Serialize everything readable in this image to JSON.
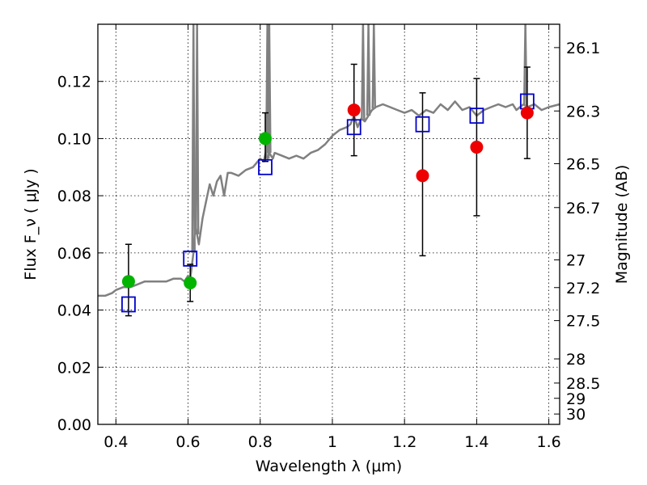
{
  "chart_data": {
    "type": "scatter",
    "xlabel": "Wavelength  λ (μm)",
    "ylabel": "Flux  F_ν  ( μJy )",
    "y2label": "Magnitude (AB)",
    "xlim": [
      0.35,
      1.63
    ],
    "ylim": [
      0.0,
      0.14
    ],
    "grid": true,
    "x_ticks": [
      {
        "value": 0.4,
        "label": "0.4"
      },
      {
        "value": 0.6,
        "label": "0.6"
      },
      {
        "value": 0.8,
        "label": "0.8"
      },
      {
        "value": 1.0,
        "label": "1"
      },
      {
        "value": 1.2,
        "label": "1.2"
      },
      {
        "value": 1.4,
        "label": "1.4"
      },
      {
        "value": 1.6,
        "label": "1.6"
      }
    ],
    "y_ticks": [
      {
        "value": 0.0,
        "label": "0.00"
      },
      {
        "value": 0.02,
        "label": "0.02"
      },
      {
        "value": 0.04,
        "label": "0.04"
      },
      {
        "value": 0.06,
        "label": "0.06"
      },
      {
        "value": 0.08,
        "label": "0.08"
      },
      {
        "value": 0.1,
        "label": "0.10"
      },
      {
        "value": 0.12,
        "label": "0.12"
      }
    ],
    "y2_ticks": [
      {
        "mag": 26.1,
        "label": "26.1"
      },
      {
        "mag": 26.3,
        "label": "26.3"
      },
      {
        "mag": 26.5,
        "label": "26.5"
      },
      {
        "mag": 26.7,
        "label": "26.7"
      },
      {
        "mag": 27.0,
        "label": "27"
      },
      {
        "mag": 27.2,
        "label": "27.2"
      },
      {
        "mag": 27.5,
        "label": "27.5"
      },
      {
        "mag": 28.0,
        "label": "28"
      },
      {
        "mag": 28.5,
        "label": "28.5"
      },
      {
        "mag": 29.0,
        "label": "29"
      },
      {
        "mag": 30.0,
        "label": "30"
      }
    ],
    "colors": {
      "model": "#808080",
      "model_points": "#0000cc",
      "detections": "#00b400",
      "nir_points": "#ee0000",
      "grid": "#000000"
    },
    "series": [
      {
        "kind": "model_spectrum",
        "x": [
          0.35,
          0.37,
          0.39,
          0.4,
          0.42,
          0.44,
          0.46,
          0.48,
          0.5,
          0.52,
          0.54,
          0.56,
          0.58,
          0.59,
          0.6,
          0.605,
          0.61,
          0.615,
          0.62,
          0.63,
          0.64,
          0.65,
          0.66,
          0.67,
          0.68,
          0.69,
          0.7,
          0.71,
          0.72,
          0.74,
          0.76,
          0.78,
          0.8,
          0.81,
          0.815,
          0.82,
          0.825,
          0.83,
          0.835,
          0.84,
          0.86,
          0.88,
          0.9,
          0.92,
          0.94,
          0.96,
          0.98,
          1.0,
          1.02,
          1.04,
          1.05,
          1.06,
          1.07,
          1.08,
          1.09,
          1.1,
          1.11,
          1.12,
          1.14,
          1.16,
          1.18,
          1.2,
          1.22,
          1.24,
          1.26,
          1.28,
          1.3,
          1.32,
          1.34,
          1.36,
          1.38,
          1.4,
          1.42,
          1.44,
          1.46,
          1.48,
          1.5,
          1.51,
          1.52,
          1.53,
          1.54,
          1.56,
          1.58,
          1.6,
          1.63
        ],
        "y": [
          0.045,
          0.045,
          0.046,
          0.047,
          0.048,
          0.048,
          0.049,
          0.05,
          0.05,
          0.05,
          0.05,
          0.051,
          0.051,
          0.05,
          0.052,
          0.05,
          0.055,
          0.06,
          0.07,
          0.063,
          0.072,
          0.078,
          0.084,
          0.08,
          0.085,
          0.087,
          0.08,
          0.088,
          0.088,
          0.087,
          0.089,
          0.09,
          0.093,
          0.092,
          0.095,
          0.093,
          0.095,
          0.094,
          0.093,
          0.095,
          0.094,
          0.093,
          0.094,
          0.093,
          0.095,
          0.096,
          0.098,
          0.101,
          0.103,
          0.104,
          0.105,
          0.108,
          0.104,
          0.107,
          0.106,
          0.108,
          0.11,
          0.111,
          0.112,
          0.111,
          0.11,
          0.109,
          0.11,
          0.108,
          0.11,
          0.109,
          0.112,
          0.11,
          0.113,
          0.11,
          0.111,
          0.108,
          0.11,
          0.111,
          0.112,
          0.111,
          0.112,
          0.11,
          0.111,
          0.112,
          0.111,
          0.112,
          0.11,
          0.111,
          0.112
        ],
        "spikes": [
          {
            "x": 0.615,
            "y": 0.14
          },
          {
            "x": 0.625,
            "y": 0.14
          },
          {
            "x": 0.82,
            "y": 0.14
          },
          {
            "x": 0.825,
            "y": 0.14
          },
          {
            "x": 1.085,
            "y": 0.14
          },
          {
            "x": 1.1,
            "y": 0.14
          },
          {
            "x": 1.115,
            "y": 0.14
          },
          {
            "x": 1.535,
            "y": 0.14
          }
        ]
      },
      {
        "kind": "model_bandpass",
        "marker": "open-square",
        "points": [
          {
            "x": 0.435,
            "y": 0.042
          },
          {
            "x": 0.606,
            "y": 0.058
          },
          {
            "x": 0.814,
            "y": 0.09
          },
          {
            "x": 1.06,
            "y": 0.104
          },
          {
            "x": 1.25,
            "y": 0.105
          },
          {
            "x": 1.4,
            "y": 0.108
          },
          {
            "x": 1.54,
            "y": 0.113
          }
        ]
      },
      {
        "kind": "optical_detections",
        "marker": "filled-circle",
        "points": [
          {
            "x": 0.435,
            "y": 0.05,
            "ylow": 0.038,
            "yhigh": 0.063
          },
          {
            "x": 0.606,
            "y": 0.0495,
            "ylow": 0.043,
            "yhigh": 0.056
          },
          {
            "x": 0.814,
            "y": 0.1,
            "ylow": 0.092,
            "yhigh": 0.109
          }
        ]
      },
      {
        "kind": "nir_measurements",
        "marker": "filled-circle",
        "points": [
          {
            "x": 1.06,
            "y": 0.11,
            "ylow": 0.094,
            "yhigh": 0.126
          },
          {
            "x": 1.25,
            "y": 0.087,
            "ylow": 0.059,
            "yhigh": 0.116
          },
          {
            "x": 1.4,
            "y": 0.097,
            "ylow": 0.073,
            "yhigh": 0.121
          },
          {
            "x": 1.54,
            "y": 0.109,
            "ylow": 0.093,
            "yhigh": 0.125
          }
        ]
      }
    ]
  }
}
